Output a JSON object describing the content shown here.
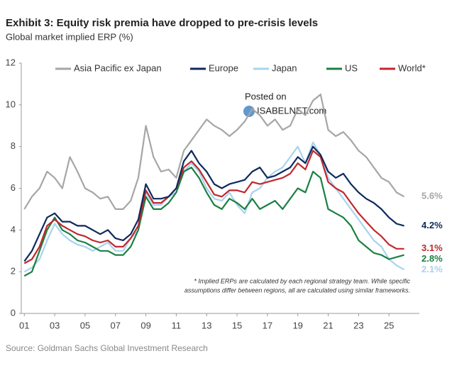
{
  "chart_data": {
    "type": "line",
    "title": "Exhibit 3: Equity risk premia have dropped to pre-crisis levels",
    "subtitle": "Global market implied ERP (%)",
    "source": "Source: Goldman Sachs Global Investment Research",
    "footnote": [
      "* Implied ERPs are calculated by each regional strategy team. While specific",
      "assumptions differ between regions, all are calculated using similar frameworks."
    ],
    "watermark": [
      "Posted on",
      "ISABELNET.com"
    ],
    "x": [
      2001,
      2001.5,
      2002,
      2002.5,
      2003,
      2003.5,
      2004,
      2004.5,
      2005,
      2005.5,
      2006,
      2006.5,
      2007,
      2007.5,
      2008,
      2008.5,
      2009,
      2009.5,
      2010,
      2010.5,
      2011,
      2011.5,
      2012,
      2012.5,
      2013,
      2013.5,
      2014,
      2014.5,
      2015,
      2015.5,
      2016,
      2016.5,
      2017,
      2017.5,
      2018,
      2018.5,
      2019,
      2019.5,
      2020,
      2020.5,
      2021,
      2021.5,
      2022,
      2022.5,
      2023,
      2023.5,
      2024,
      2024.5,
      2025,
      2025.5,
      2026
    ],
    "xlim": [
      2000.8,
      2027
    ],
    "xticks": [
      {
        "value": 2001,
        "label": "01"
      },
      {
        "value": 2003,
        "label": "03"
      },
      {
        "value": 2005,
        "label": "05"
      },
      {
        "value": 2007,
        "label": "07"
      },
      {
        "value": 2009,
        "label": "09"
      },
      {
        "value": 2011,
        "label": "11"
      },
      {
        "value": 2013,
        "label": "13"
      },
      {
        "value": 2015,
        "label": "15"
      },
      {
        "value": 2017,
        "label": "17"
      },
      {
        "value": 2019,
        "label": "19"
      },
      {
        "value": 2021,
        "label": "21"
      },
      {
        "value": 2023,
        "label": "23"
      },
      {
        "value": 2025,
        "label": "25"
      }
    ],
    "ylim": [
      0,
      12
    ],
    "yticks": [
      0,
      2,
      4,
      6,
      8,
      10,
      12
    ],
    "legend": "top",
    "series": [
      {
        "name": "Asia Pacific ex Japan",
        "color": "#a6a6a6",
        "end_label": "5.6%",
        "values": [
          5.0,
          5.6,
          6.0,
          6.8,
          6.5,
          6.0,
          7.5,
          6.8,
          6.0,
          5.8,
          5.5,
          5.6,
          5.0,
          5.0,
          5.4,
          6.5,
          9.0,
          7.5,
          6.8,
          6.9,
          6.5,
          7.8,
          8.3,
          8.8,
          9.3,
          9.0,
          8.8,
          8.5,
          8.8,
          9.2,
          9.8,
          9.5,
          9.0,
          9.3,
          8.8,
          9.0,
          9.8,
          9.5,
          10.2,
          10.5,
          8.8,
          8.5,
          8.7,
          8.3,
          7.8,
          7.5,
          7.0,
          6.5,
          6.3,
          5.8,
          5.6
        ]
      },
      {
        "name": "Europe",
        "color": "#0d2a5c",
        "end_label": "4.2%",
        "values": [
          2.5,
          3.0,
          3.8,
          4.6,
          4.8,
          4.4,
          4.4,
          4.2,
          4.2,
          4.0,
          3.8,
          4.0,
          3.6,
          3.5,
          3.8,
          4.5,
          6.2,
          5.5,
          5.5,
          5.6,
          6.0,
          7.3,
          7.8,
          7.2,
          6.8,
          6.2,
          6.0,
          6.2,
          6.3,
          6.4,
          6.8,
          7.0,
          6.5,
          6.6,
          6.8,
          7.0,
          7.5,
          7.2,
          8.0,
          7.6,
          6.8,
          6.5,
          6.7,
          6.2,
          5.8,
          5.5,
          5.3,
          5.0,
          4.6,
          4.3,
          4.2
        ]
      },
      {
        "name": "Japan",
        "color": "#a9d3ee",
        "end_label": "2.1%",
        "values": [
          2.0,
          2.2,
          2.6,
          3.5,
          4.3,
          3.8,
          3.5,
          3.3,
          3.2,
          3.0,
          3.2,
          3.4,
          3.0,
          3.0,
          3.6,
          4.0,
          5.8,
          5.2,
          5.2,
          5.6,
          5.8,
          6.8,
          7.2,
          6.8,
          6.0,
          5.5,
          5.4,
          5.8,
          5.2,
          4.8,
          5.8,
          6.0,
          6.5,
          6.8,
          7.0,
          7.5,
          8.0,
          7.2,
          8.2,
          7.6,
          6.5,
          6.0,
          5.5,
          5.0,
          4.5,
          4.0,
          3.5,
          3.2,
          2.6,
          2.3,
          2.1
        ]
      },
      {
        "name": "US",
        "color": "#1a8042",
        "end_label": "2.8%",
        "values": [
          1.8,
          2.0,
          3.0,
          4.0,
          4.6,
          4.0,
          3.8,
          3.5,
          3.4,
          3.2,
          3.0,
          3.0,
          2.8,
          2.8,
          3.2,
          4.0,
          5.6,
          5.0,
          5.0,
          5.3,
          5.8,
          6.8,
          7.0,
          6.5,
          5.8,
          5.2,
          5.0,
          5.5,
          5.3,
          5.0,
          5.5,
          5.0,
          5.2,
          5.4,
          5.0,
          5.5,
          6.0,
          5.8,
          6.8,
          6.5,
          5.0,
          4.8,
          4.6,
          4.2,
          3.5,
          3.2,
          2.9,
          2.8,
          2.6,
          2.7,
          2.8
        ]
      },
      {
        "name": "World*",
        "color": "#c0282d",
        "end_label": "3.1%",
        "values": [
          2.4,
          2.6,
          3.2,
          4.2,
          4.5,
          4.2,
          4.0,
          3.8,
          3.7,
          3.5,
          3.4,
          3.5,
          3.2,
          3.2,
          3.6,
          4.2,
          5.9,
          5.3,
          5.3,
          5.6,
          6.0,
          7.0,
          7.3,
          6.9,
          6.3,
          5.7,
          5.6,
          5.9,
          5.9,
          5.8,
          6.3,
          6.2,
          6.3,
          6.4,
          6.5,
          6.7,
          7.2,
          6.9,
          7.8,
          7.5,
          6.3,
          6.0,
          5.8,
          5.3,
          4.8,
          4.4,
          4.0,
          3.7,
          3.3,
          3.1,
          3.1
        ]
      }
    ]
  }
}
